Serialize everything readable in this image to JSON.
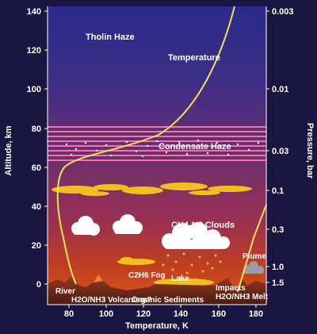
{
  "colors": {
    "frame": "#1b1640",
    "temperature_curve": "#f2e05a",
    "haze_band": "#ff6fa8",
    "methane_cloud": "#f0c020",
    "convective_cloud": "#ffffff",
    "sky_top": "#2a2a8a",
    "sky_mid": "#7a2e6e",
    "sky_low": "#d0401a",
    "surface": "#7a2a18"
  },
  "axes": {
    "altitude_label": "Altitude, km",
    "altitude_ticks": [
      "140",
      "120",
      "100",
      "80",
      "60",
      "40",
      "20",
      "0"
    ],
    "pressure_label": "Pressure, bar",
    "pressure_ticks": [
      "0.003",
      "0.01",
      "0.03",
      "0.1",
      "0.3",
      "1.0",
      "1.5"
    ],
    "temperature_label": "Temperature, K",
    "temperature_ticks": [
      "80",
      "100",
      "120",
      "140",
      "160",
      "180"
    ]
  },
  "labels": {
    "tholin_haze": "Tholin Haze",
    "temperature": "Temperature",
    "condensate_haze": "Condensate Haze",
    "clouds": "CH4-N2 Clouds",
    "fog": "C2H6 Fog",
    "lake": "Lake",
    "plume": "Plume",
    "river": "River",
    "volcanism": "H2O/NH3 Volcanism?",
    "organic_sediments": "Organic Sediments",
    "impacts": "Impacts",
    "melt": "H2O/NH3 Melt"
  }
}
